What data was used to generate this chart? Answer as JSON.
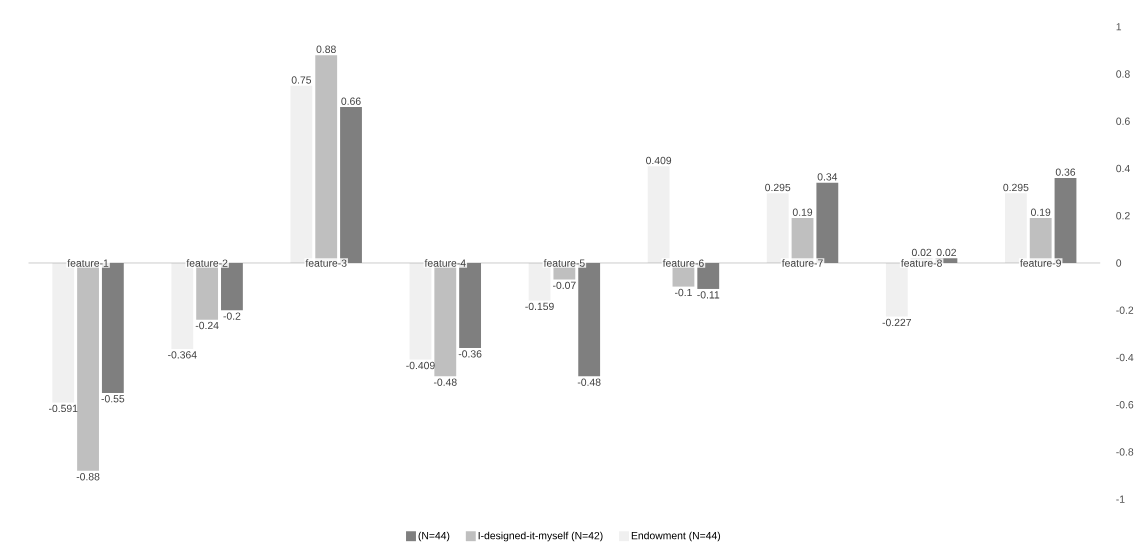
{
  "chart_data": {
    "type": "bar",
    "categories": [
      "feature-1",
      "feature-2",
      "feature-3",
      "feature-4",
      "feature-5",
      "feature-6",
      "feature-7",
      "feature-8",
      "feature-9"
    ],
    "series": [
      {
        "name": "Endowment (N=44)",
        "color": "#f0f0f0",
        "values": [
          -0.591,
          -0.364,
          0.75,
          -0.409,
          -0.159,
          0.409,
          0.295,
          -0.227,
          0.295
        ],
        "value_labels": [
          "-0.591",
          "-0.364",
          "0.75",
          "-0.409",
          "-0.159",
          "0.409",
          "0.295",
          "-0.227",
          "0.295"
        ]
      },
      {
        "name": "I-designed-it-myself (N=42)",
        "color": "#bfbfbf",
        "values": [
          -0.88,
          -0.24,
          0.88,
          -0.48,
          -0.07,
          -0.1,
          0.19,
          0.02,
          0.19
        ],
        "value_labels": [
          "-0.88",
          "-0.24",
          "0.88",
          "-0.48",
          "-0.07",
          "-0.1",
          "0.19",
          "0.02",
          "0.19"
        ]
      },
      {
        "name": "(N=44)",
        "color": "#7f7f7f",
        "values": [
          -0.55,
          -0.2,
          0.66,
          -0.36,
          -0.48,
          -0.11,
          0.34,
          0.02,
          0.36
        ],
        "value_labels": [
          "-0.55",
          "-0.2",
          "0.66",
          "-0.36",
          "-0.48",
          "-0.11",
          "0.34",
          "0.02",
          "0.36"
        ]
      }
    ],
    "ylim": [
      -1,
      1
    ],
    "yticks": [
      -1,
      -0.8,
      -0.6,
      -0.4,
      -0.2,
      0,
      0.2,
      0.4,
      0.6,
      0.8,
      1
    ],
    "legend": "bottom",
    "grid": false
  }
}
